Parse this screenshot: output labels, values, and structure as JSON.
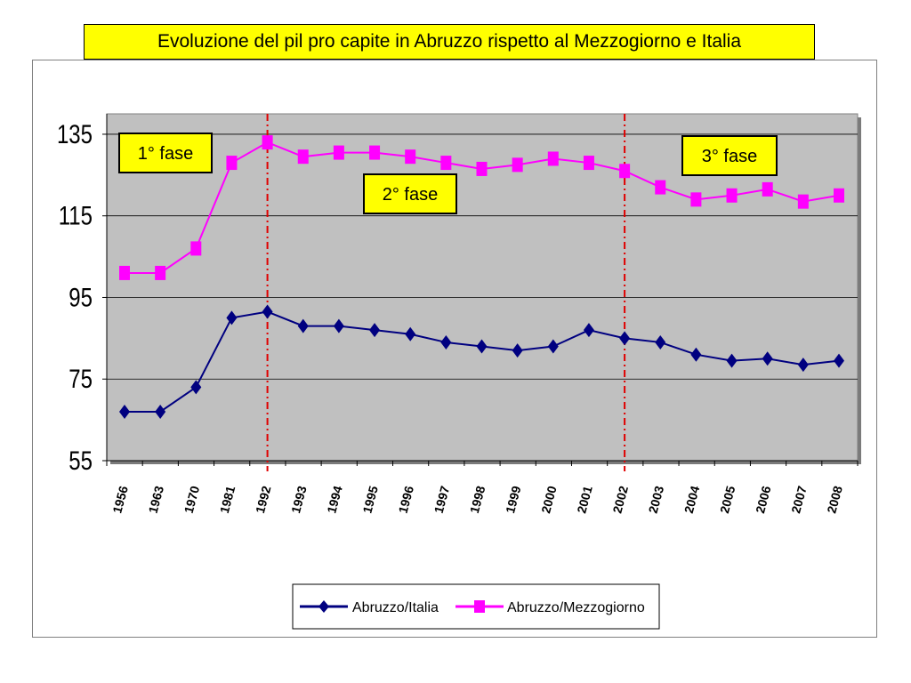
{
  "title": "Evoluzione del pil pro capite in Abruzzo rispetto al Mezzogiorno e Italia",
  "chart_data": {
    "type": "line",
    "title": "Evoluzione del pil pro capite in Abruzzo rispetto al Mezzogiorno e Italia",
    "categories": [
      "1956",
      "1963",
      "1970",
      "1981",
      "1992",
      "1993",
      "1994",
      "1995",
      "1996",
      "1997",
      "1998",
      "1999",
      "2000",
      "2001",
      "2002",
      "2003",
      "2004",
      "2005",
      "2006",
      "2007",
      "2008"
    ],
    "category_labels_rendered": [
      "1956",
      "1963",
      "1970",
      "1981",
      "1992",
      "1993",
      "1994",
      "1995",
      "1996",
      "1997",
      "1998",
      "1999",
      "2000",
      "2001",
      "2002",
      "2003",
      "2004",
      "2005",
      "2006",
      "2007",
      "2008"
    ],
    "ylim": [
      55,
      140
    ],
    "yticks": [
      55,
      75,
      95,
      115,
      135
    ],
    "grid": true,
    "legend_position": "bottom",
    "series": [
      {
        "name": "Abruzzo/Italia",
        "color": "#000080",
        "marker": "diamond",
        "values": [
          67,
          67,
          73,
          90,
          91.5,
          88,
          88,
          87,
          86,
          84,
          83,
          82,
          83,
          87,
          85,
          84,
          81,
          79.5,
          80,
          78.5,
          79.5
        ]
      },
      {
        "name": "Abruzzo/Mezzogiorno",
        "color": "#ff00ff",
        "marker": "square",
        "values": [
          101,
          101,
          107,
          128,
          133,
          129.5,
          130.5,
          130.5,
          129.5,
          128,
          126.5,
          127.5,
          129,
          128,
          126,
          122,
          119,
          120,
          121.5,
          118.5,
          120
        ]
      }
    ],
    "annotations": [
      {
        "text": "1° fase"
      },
      {
        "text": "2° fase"
      },
      {
        "text": "3° fase"
      }
    ],
    "phase_dividers_at": [
      "1992",
      "2002"
    ]
  }
}
